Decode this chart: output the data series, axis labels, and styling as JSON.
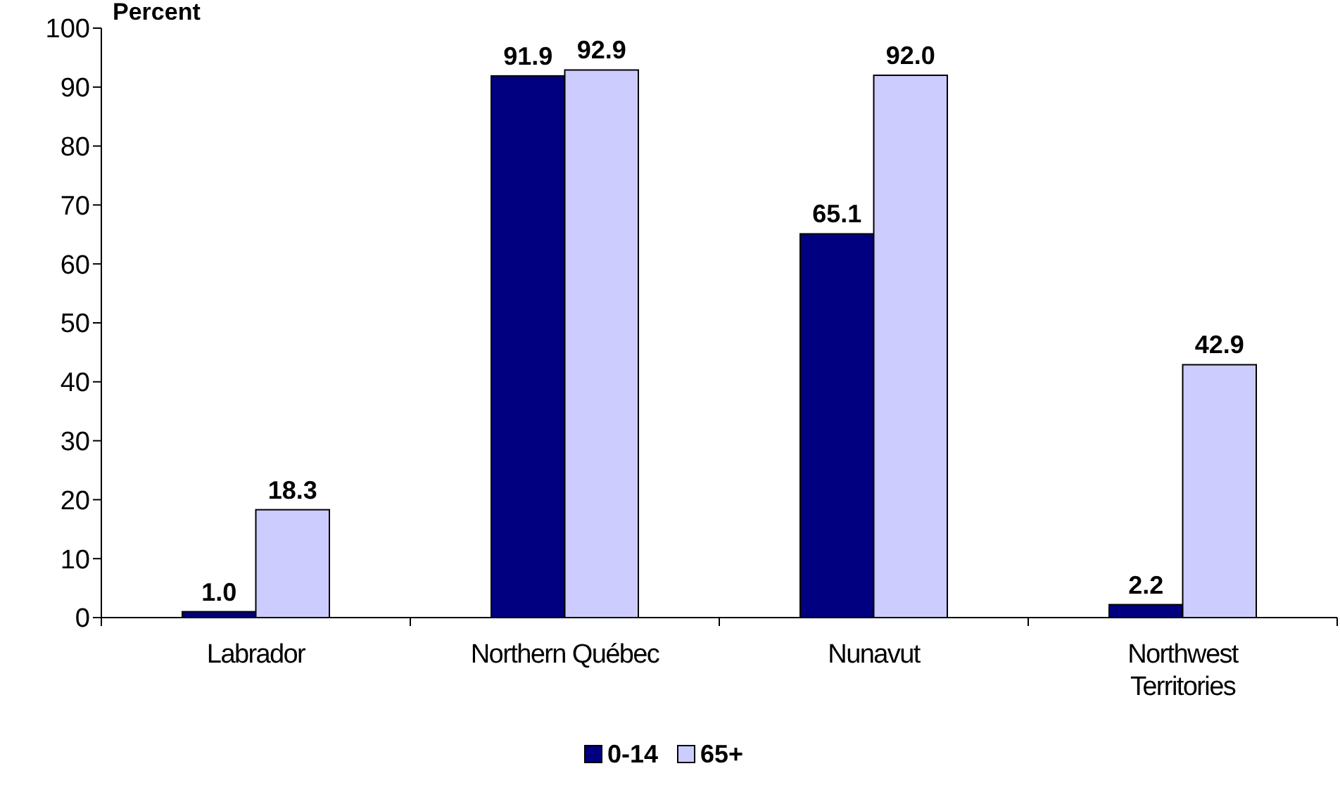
{
  "chart_data": {
    "type": "bar",
    "ylabel": "Percent",
    "categories": [
      "Labrador",
      "Northern Québec",
      "Nunavut",
      "Northwest Territories"
    ],
    "series": [
      {
        "name": "0-14",
        "color": "#000080",
        "values": [
          1.0,
          91.9,
          65.1,
          2.2
        ],
        "value_labels": [
          "1.0",
          "91.9",
          "65.1",
          "2.2"
        ]
      },
      {
        "name": "65+",
        "color": "#ccccff",
        "values": [
          18.3,
          92.9,
          92.0,
          42.9
        ],
        "value_labels": [
          "18.3",
          "92.9",
          "92.0",
          "42.9"
        ]
      }
    ],
    "ylim": [
      0,
      100
    ],
    "yticks": [
      0,
      10,
      20,
      30,
      40,
      50,
      60,
      70,
      80,
      90,
      100
    ],
    "legend": "bottom",
    "grid": false
  }
}
